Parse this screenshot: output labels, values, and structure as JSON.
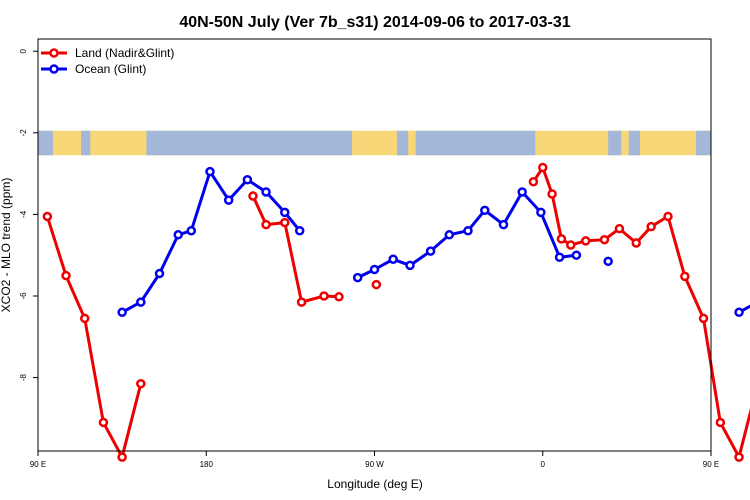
{
  "chart_data": {
    "type": "line",
    "title": "40N-50N July (Ver 7b_s31)   2014-09-06 to 2017-03-31",
    "xlabel": "Longitude (deg E)",
    "ylabel": "XCO2 - MLO trend (ppm)",
    "xlim": [
      90,
      450
    ],
    "ylim": [
      -9.8,
      0.3
    ],
    "x_ticks": [
      {
        "value": 90,
        "label": "90 E"
      },
      {
        "value": 180,
        "label": "180"
      },
      {
        "value": 270,
        "label": "90 W"
      },
      {
        "value": 360,
        "label": "0"
      },
      {
        "value": 450,
        "label": "90 E"
      },
      {
        "value": 540,
        "label": "180"
      }
    ],
    "y_ticks": [
      {
        "value": 0,
        "label": "0"
      },
      {
        "value": -2,
        "label": "-2"
      },
      {
        "value": -4,
        "label": "-4"
      },
      {
        "value": -6,
        "label": "-6"
      },
      {
        "value": -8,
        "label": "-8"
      }
    ],
    "legend_position": "top-left",
    "map_band": {
      "y_top": -1.95,
      "y_bottom": -2.55,
      "land_color": "#f8d778",
      "ocean_color": "#a3b8d8"
    },
    "series": [
      {
        "name": "Land (Nadir&Glint)",
        "color": "#ee0000",
        "points": [
          [
            95,
            -4.05
          ],
          [
            105,
            -5.5
          ],
          [
            115,
            -6.55
          ],
          [
            125,
            -9.1
          ],
          [
            135,
            -9.95
          ],
          [
            145,
            -8.15
          ],
          [
            null,
            null
          ],
          [
            205,
            -3.55
          ],
          [
            212,
            -4.25
          ],
          [
            222,
            -4.2
          ],
          [
            231,
            -6.15
          ],
          [
            243,
            -6.0
          ],
          [
            251,
            -6.02
          ],
          [
            null,
            null
          ],
          [
            271,
            -5.72
          ],
          [
            null,
            null
          ],
          [
            355,
            -3.2
          ],
          [
            360,
            -2.85
          ],
          [
            365,
            -3.5
          ],
          [
            370,
            -4.6
          ],
          [
            375,
            -4.75
          ],
          [
            383,
            -4.65
          ],
          [
            393,
            -4.62
          ],
          [
            401,
            -4.35
          ],
          [
            410,
            -4.7
          ],
          [
            418,
            -4.3
          ],
          [
            427,
            -4.05
          ],
          [
            436,
            -5.52
          ],
          [
            446,
            -6.55
          ],
          [
            455,
            -9.1
          ],
          [
            465,
            -9.95
          ],
          [
            475,
            -8.15
          ]
        ]
      },
      {
        "name": "Ocean (Glint)",
        "color": "#0000ee",
        "points": [
          [
            135,
            -6.4
          ],
          [
            145,
            -6.15
          ],
          [
            155,
            -5.45
          ],
          [
            165,
            -4.5
          ],
          [
            172,
            -4.4
          ],
          [
            182,
            -2.95
          ],
          [
            192,
            -3.65
          ],
          [
            202,
            -3.15
          ],
          [
            212,
            -3.45
          ],
          [
            222,
            -3.95
          ],
          [
            230,
            -4.4
          ],
          [
            null,
            null
          ],
          [
            261,
            -5.55
          ],
          [
            270,
            -5.35
          ],
          [
            280,
            -5.1
          ],
          [
            289,
            -5.25
          ],
          [
            300,
            -4.9
          ],
          [
            310,
            -4.5
          ],
          [
            320,
            -4.4
          ],
          [
            329,
            -3.9
          ],
          [
            339,
            -4.25
          ],
          [
            349,
            -3.45
          ],
          [
            359,
            -3.95
          ],
          [
            369,
            -5.05
          ],
          [
            378,
            -5.0
          ],
          [
            null,
            null
          ],
          [
            395,
            -5.15
          ],
          [
            null,
            null
          ],
          [
            465,
            -6.4
          ],
          [
            475,
            -6.15
          ],
          [
            485,
            -5.45
          ],
          [
            495,
            -4.5
          ],
          [
            502,
            -4.4
          ]
        ]
      }
    ]
  }
}
